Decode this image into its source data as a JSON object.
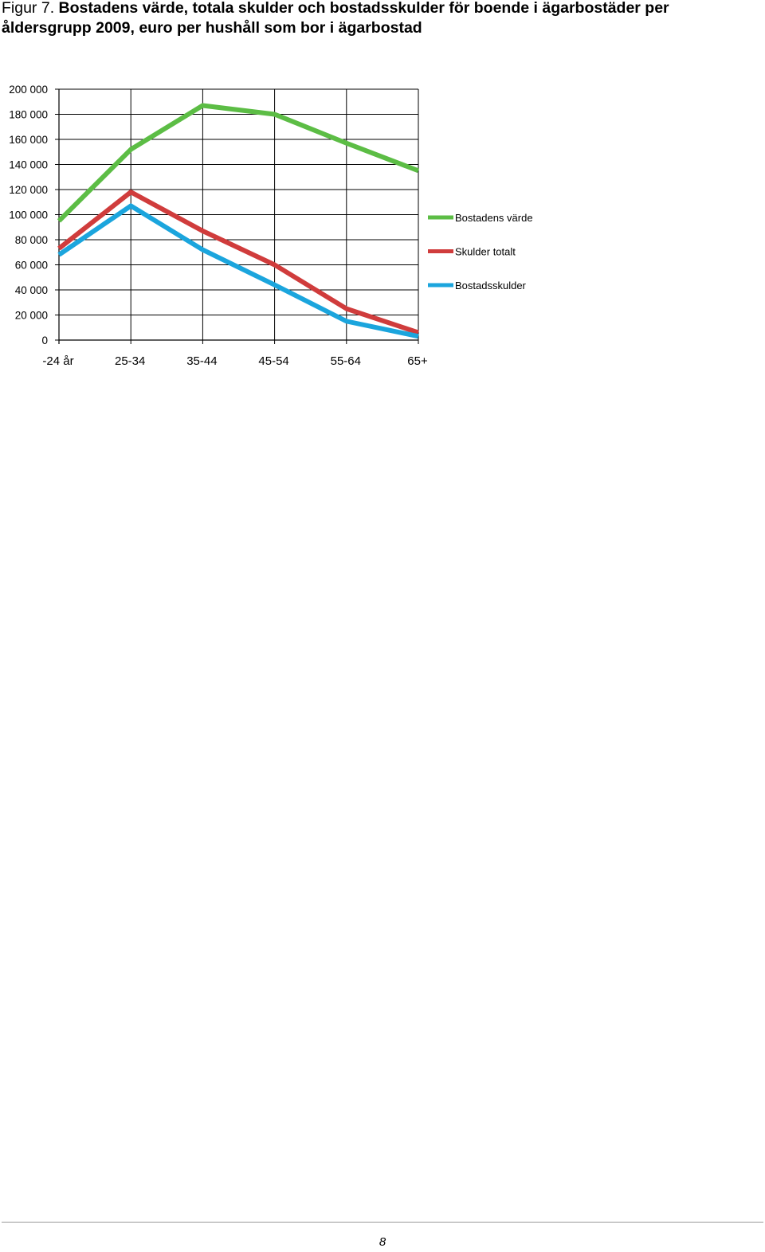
{
  "caption": {
    "label": "Figur 7.",
    "title": "Bostadens värde, totala skulder och bostadsskulder för boende i ägarbostäder per åldersgrupp 2009, euro per hushåll som bor i ägarbostad"
  },
  "chart_data": {
    "type": "line",
    "categories": [
      "-24 år",
      "25-34",
      "35-44",
      "45-54",
      "55-64",
      "65+"
    ],
    "ylim": [
      0,
      200000
    ],
    "yticks": [
      0,
      20000,
      40000,
      60000,
      80000,
      100000,
      120000,
      140000,
      160000,
      180000,
      200000
    ],
    "ytick_labels": [
      "0",
      "20 000",
      "40 000",
      "60 000",
      "80 000",
      "100 000",
      "120 000",
      "140 000",
      "160 000",
      "180 000",
      "200 000"
    ],
    "grid": true,
    "legend_position": "right",
    "series": [
      {
        "name": "Bostadens värde",
        "color": "#5cbd45",
        "values": [
          95000,
          152000,
          187000,
          180000,
          157000,
          135000
        ]
      },
      {
        "name": "Skulder totalt",
        "color": "#d03c3c",
        "values": [
          73000,
          118000,
          87000,
          60000,
          25000,
          6000
        ]
      },
      {
        "name": "Bostadsskulder",
        "color": "#1ba5dd",
        "values": [
          68000,
          107000,
          72000,
          44000,
          15000,
          3000
        ]
      }
    ]
  },
  "footer": {
    "page_number": "8"
  }
}
